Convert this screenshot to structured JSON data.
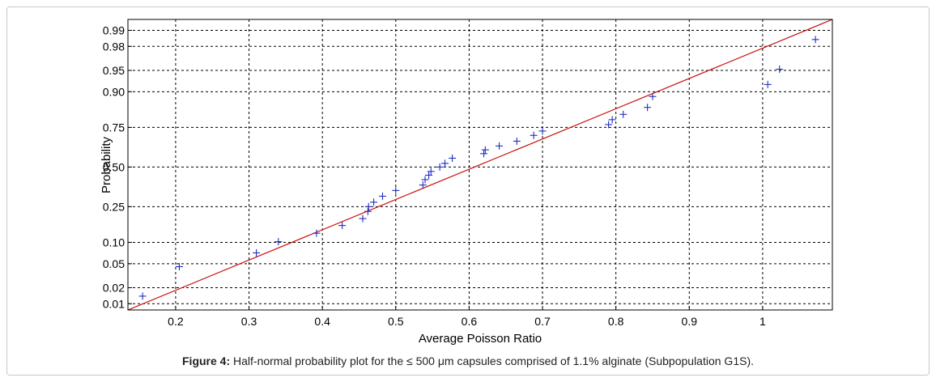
{
  "chart_data": {
    "type": "scatter",
    "xlabel": "Average Poisson Ratio",
    "ylabel": "Probability",
    "xlim": [
      0.135,
      1.095
    ],
    "x_ticks": [
      0.2,
      0.3,
      0.4,
      0.5,
      0.6,
      0.7,
      0.8,
      0.9,
      1
    ],
    "x_tick_labels": [
      "0.2",
      "0.3",
      "0.4",
      "0.5",
      "0.6",
      "0.7",
      "0.8",
      "0.9",
      "1"
    ],
    "y_ticks": [
      0.99,
      0.98,
      0.95,
      0.9,
      0.75,
      0.5,
      0.25,
      0.1,
      0.05,
      0.02,
      0.01
    ],
    "y_tick_labels": [
      "0.99",
      "0.98",
      "0.95",
      "0.90",
      "0.75",
      "0.50",
      "0.25",
      "0.10",
      "0.05",
      "0.02",
      "0.01"
    ],
    "grid": true,
    "marker": "+",
    "marker_color": "#1f2fbf",
    "fit_line_color": "#cc1111",
    "fit_line": {
      "x": [
        0.135,
        1.095
      ],
      "p": [
        0.0075,
        0.994
      ]
    },
    "points": [
      {
        "x": 0.155,
        "p": 0.014
      },
      {
        "x": 0.205,
        "p": 0.045
      },
      {
        "x": 0.31,
        "p": 0.072
      },
      {
        "x": 0.34,
        "p": 0.102
      },
      {
        "x": 0.392,
        "p": 0.13
      },
      {
        "x": 0.427,
        "p": 0.16
      },
      {
        "x": 0.455,
        "p": 0.19
      },
      {
        "x": 0.462,
        "p": 0.225
      },
      {
        "x": 0.463,
        "p": 0.25
      },
      {
        "x": 0.47,
        "p": 0.275
      },
      {
        "x": 0.482,
        "p": 0.31
      },
      {
        "x": 0.5,
        "p": 0.345
      },
      {
        "x": 0.537,
        "p": 0.38
      },
      {
        "x": 0.54,
        "p": 0.415
      },
      {
        "x": 0.545,
        "p": 0.445
      },
      {
        "x": 0.548,
        "p": 0.47
      },
      {
        "x": 0.56,
        "p": 0.5
      },
      {
        "x": 0.567,
        "p": 0.525
      },
      {
        "x": 0.577,
        "p": 0.56
      },
      {
        "x": 0.62,
        "p": 0.59
      },
      {
        "x": 0.622,
        "p": 0.615
      },
      {
        "x": 0.641,
        "p": 0.64
      },
      {
        "x": 0.665,
        "p": 0.67
      },
      {
        "x": 0.688,
        "p": 0.705
      },
      {
        "x": 0.7,
        "p": 0.73
      },
      {
        "x": 0.79,
        "p": 0.765
      },
      {
        "x": 0.795,
        "p": 0.79
      },
      {
        "x": 0.81,
        "p": 0.815
      },
      {
        "x": 0.843,
        "p": 0.845
      },
      {
        "x": 0.85,
        "p": 0.885
      },
      {
        "x": 1.007,
        "p": 0.92
      },
      {
        "x": 1.023,
        "p": 0.952
      },
      {
        "x": 1.072,
        "p": 0.985
      }
    ]
  },
  "caption": {
    "label": "Figure 4:",
    "text": " Half-normal probability plot for the ≤ 500 μm capsules comprised of 1.1% alginate (Subpopulation G1S)."
  }
}
